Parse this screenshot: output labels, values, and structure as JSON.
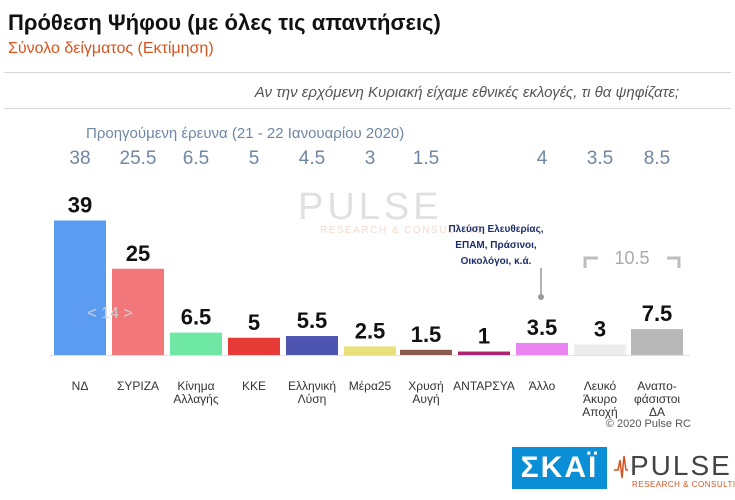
{
  "header": {
    "title": "Πρόθεση Ψήφου (με όλες τις απαντήσεις)",
    "subtitle": "Σύνολο δείγματος   (Εκτίμηση)",
    "question": "Αν την ερχόμενη Κυριακή είχαμε εθνικές εκλογές, τι θα ψηφίζατε;",
    "previous_survey_label": "Προηγούμενη έρευνα  (21 - 22 Ιανουαρίου  2020)"
  },
  "chart_data": {
    "type": "bar",
    "categories": [
      "ΝΔ",
      "ΣΥΡΙΖΑ",
      "Κίνημα\nΑλλαγής",
      "ΚΚΕ",
      "Ελληνική\nΛύση",
      "Μέρα25",
      "Χρυσή\nΑυγή",
      "ΑΝΤΑΡΣΥΑ",
      "Άλλο",
      "Λευκό\nΆκυρο\nΑποχή",
      "Αναπο-\nφάσιστοι\nΔΑ"
    ],
    "values": [
      39,
      25,
      6.5,
      5,
      5.5,
      2.5,
      1.5,
      1,
      3.5,
      3,
      7.5
    ],
    "value_labels": [
      "39",
      "25",
      "6.5",
      "5",
      "5.5",
      "2.5",
      "1.5",
      "1",
      "3.5",
      "3",
      "7.5"
    ],
    "previous_values": [
      "38",
      "25.5",
      "6.5",
      "5",
      "4.5",
      "3",
      "1.5",
      "",
      "4",
      "3.5",
      "8.5"
    ],
    "colors": [
      "#5b9bf0",
      "#f2777b",
      "#6ee8a4",
      "#e53a35",
      "#4e55b0",
      "#e9e07a",
      "#8a5a4e",
      "#b02272",
      "#ea84f0",
      "#ececec",
      "#b8b8b8"
    ],
    "ylim": [
      0,
      40
    ],
    "annotations": {
      "gap": "< 14 >",
      "other_note": [
        "Πλεύση Ελευθερίας,",
        "ΕΠΑΜ, Πράσινοι,",
        "Οικολόγοι,  κ.ά."
      ],
      "bracket_total": "10.5"
    }
  },
  "watermark": {
    "brand": "PULSE",
    "tagline": "RESEARCH & CONSULTING"
  },
  "footer": {
    "copyright": "© 2020 Pulse RC",
    "logo_skai": "ΣΚΑΪ",
    "logo_pulse": "PULSE",
    "logo_pulse_tagline": "RESEARCH & CONSULTING"
  }
}
